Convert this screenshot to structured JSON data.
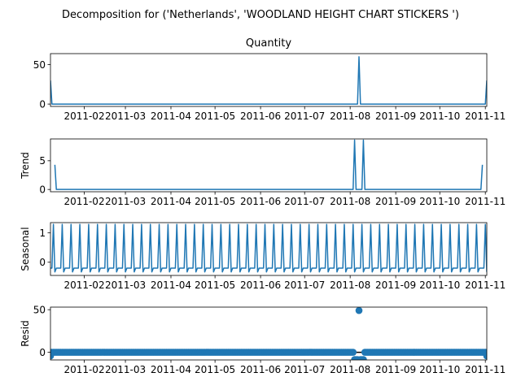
{
  "chart_data": {
    "type": "line",
    "title": "Decomposition for ('Netherlands', 'WOODLAND  HEIGHT CHART STICKERS ')",
    "line_color": "#1f77b4",
    "x_range": [
      "2011-01-09",
      "2011-11-02"
    ],
    "x_ticks": [
      "2011-02",
      "2011-03",
      "2011-04",
      "2011-05",
      "2011-06",
      "2011-07",
      "2011-08",
      "2011-09",
      "2011-10",
      "2011-11"
    ],
    "panels": [
      {
        "id": "quantity",
        "title": "Quantity",
        "ylabel": "",
        "kind": "line",
        "ylim": [
          -3,
          64
        ],
        "yticks": [
          "0",
          "50"
        ],
        "ytick_values": [
          0,
          50
        ],
        "default_value": 0,
        "points": [
          {
            "x": "2011-01-09",
            "y": 30
          },
          {
            "x": "2011-01-10",
            "y": 0
          },
          {
            "x": "2011-08-06",
            "y": 0
          },
          {
            "x": "2011-08-07",
            "y": 60
          },
          {
            "x": "2011-08-08",
            "y": 0
          },
          {
            "x": "2011-11-01",
            "y": 0
          },
          {
            "x": "2011-11-02",
            "y": 30
          }
        ]
      },
      {
        "id": "trend",
        "title": "",
        "ylabel": "Trend",
        "kind": "line",
        "ylim": [
          -0.4,
          8.8
        ],
        "yticks": [
          "0",
          "5"
        ],
        "ytick_values": [
          0,
          5
        ],
        "default_value": 0,
        "points": [
          {
            "x": "2011-01-12",
            "y": 4.3
          },
          {
            "x": "2011-01-13",
            "y": 0
          },
          {
            "x": "2011-08-03",
            "y": 0
          },
          {
            "x": "2011-08-04",
            "y": 8.6
          },
          {
            "x": "2011-08-10",
            "y": 8.6
          },
          {
            "x": "2011-08-11",
            "y": 0
          },
          {
            "x": "2011-10-29",
            "y": 0
          },
          {
            "x": "2011-10-30",
            "y": 4.3
          }
        ]
      },
      {
        "id": "seasonal",
        "title": "",
        "ylabel": "Seasonal",
        "kind": "seasonal",
        "ylim": [
          -0.45,
          1.35
        ],
        "yticks": [
          "0",
          "1"
        ],
        "ytick_values": [
          0,
          1
        ],
        "period_days": 6,
        "first_peak": "2011-01-11",
        "peak": 1.29,
        "base": -0.2,
        "trough": -0.33
      },
      {
        "id": "resid",
        "title": "",
        "ylabel": "Resid",
        "kind": "scatter",
        "ylim": [
          -9,
          53
        ],
        "yticks": [
          "0",
          "50"
        ],
        "ytick_values": [
          0,
          50
        ],
        "baseline": 0,
        "baseline_color": "#000000",
        "default_value": 0,
        "points": [
          {
            "x": "2011-01-09",
            "y": -4.3
          },
          {
            "x": "2011-08-04",
            "y": -8.6
          },
          {
            "x": "2011-08-05",
            "y": -8.6
          },
          {
            "x": "2011-08-06",
            "y": -8.6
          },
          {
            "x": "2011-08-07",
            "y": 49
          },
          {
            "x": "2011-08-08",
            "y": -8.6
          },
          {
            "x": "2011-08-09",
            "y": -8.6
          },
          {
            "x": "2011-08-10",
            "y": -8.6
          },
          {
            "x": "2011-11-02",
            "y": -4.3
          }
        ]
      }
    ]
  }
}
